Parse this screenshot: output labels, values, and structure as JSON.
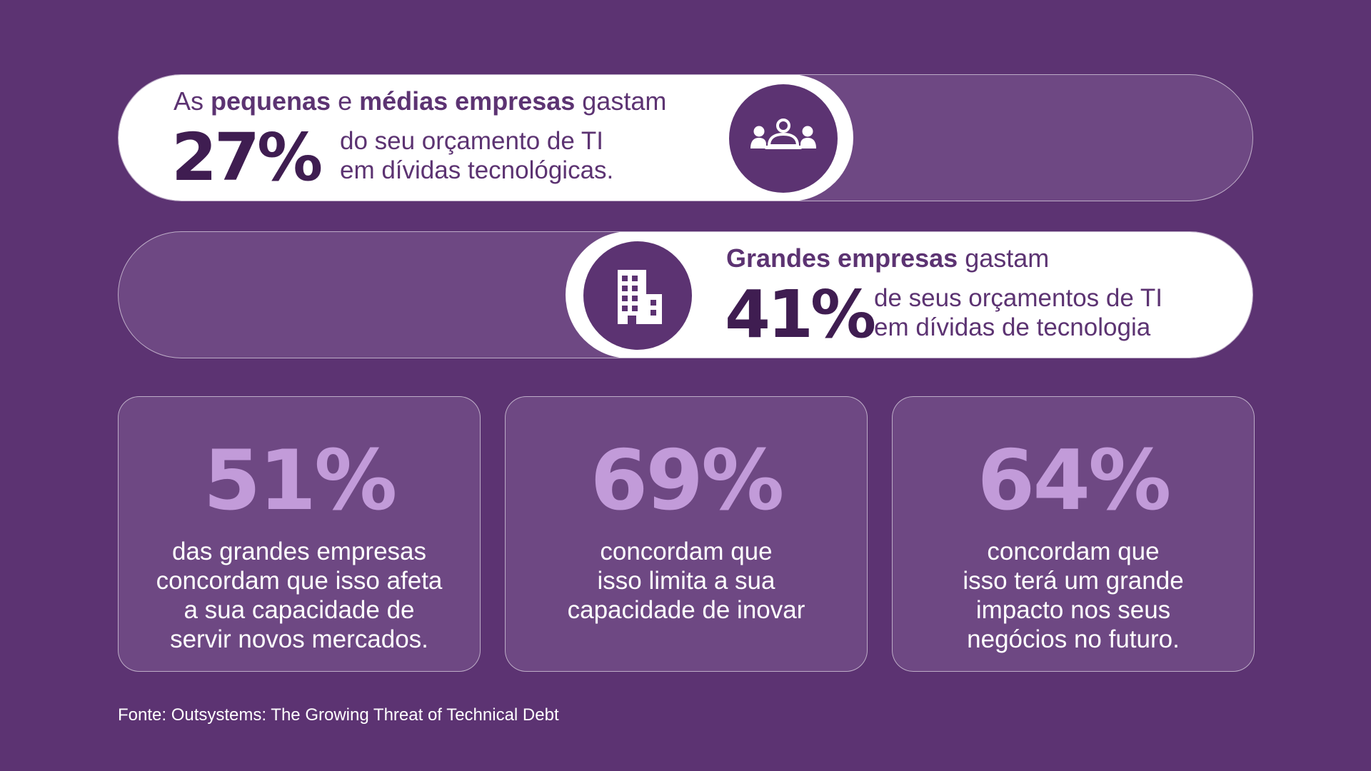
{
  "colors": {
    "background": "#5c3372",
    "panel": "#6e4883",
    "highlight": "#ffffff",
    "dark_text": "#3f1d51",
    "accent_value": "#c29bd9"
  },
  "smb": {
    "icon": "group-people-icon",
    "heading_prefix": "As ",
    "heading_bold_1": "pequenas",
    "heading_mid": " e ",
    "heading_bold_2": "médias empresas",
    "heading_suffix": " gastam",
    "value": "27%",
    "desc_line1": "do seu orçamento de TI",
    "desc_line2": "em dívidas tecnológicas.",
    "fill_fraction": 0.65
  },
  "enterprise": {
    "icon": "office-building-icon",
    "heading_bold": "Grandes empresas",
    "heading_suffix": " gastam",
    "value": "41%",
    "desc_line1": "de seus orçamentos de TI",
    "desc_line2": "em dívidas de tecnologia",
    "fill_fraction": 0.61
  },
  "stats": [
    {
      "value": "51%",
      "text": "das grandes empresas\nconcordam que isso afeta\na sua capacidade de\nservir novos mercados."
    },
    {
      "value": "69%",
      "text": "concordam que\nisso limita a sua\ncapacidade de inovar"
    },
    {
      "value": "64%",
      "text": "concordam que\nisso terá um grande\nimpacto nos seus\nnegócios no futuro."
    }
  ],
  "source": "Fonte: Outsystems: The Growing Threat of Technical Debt"
}
